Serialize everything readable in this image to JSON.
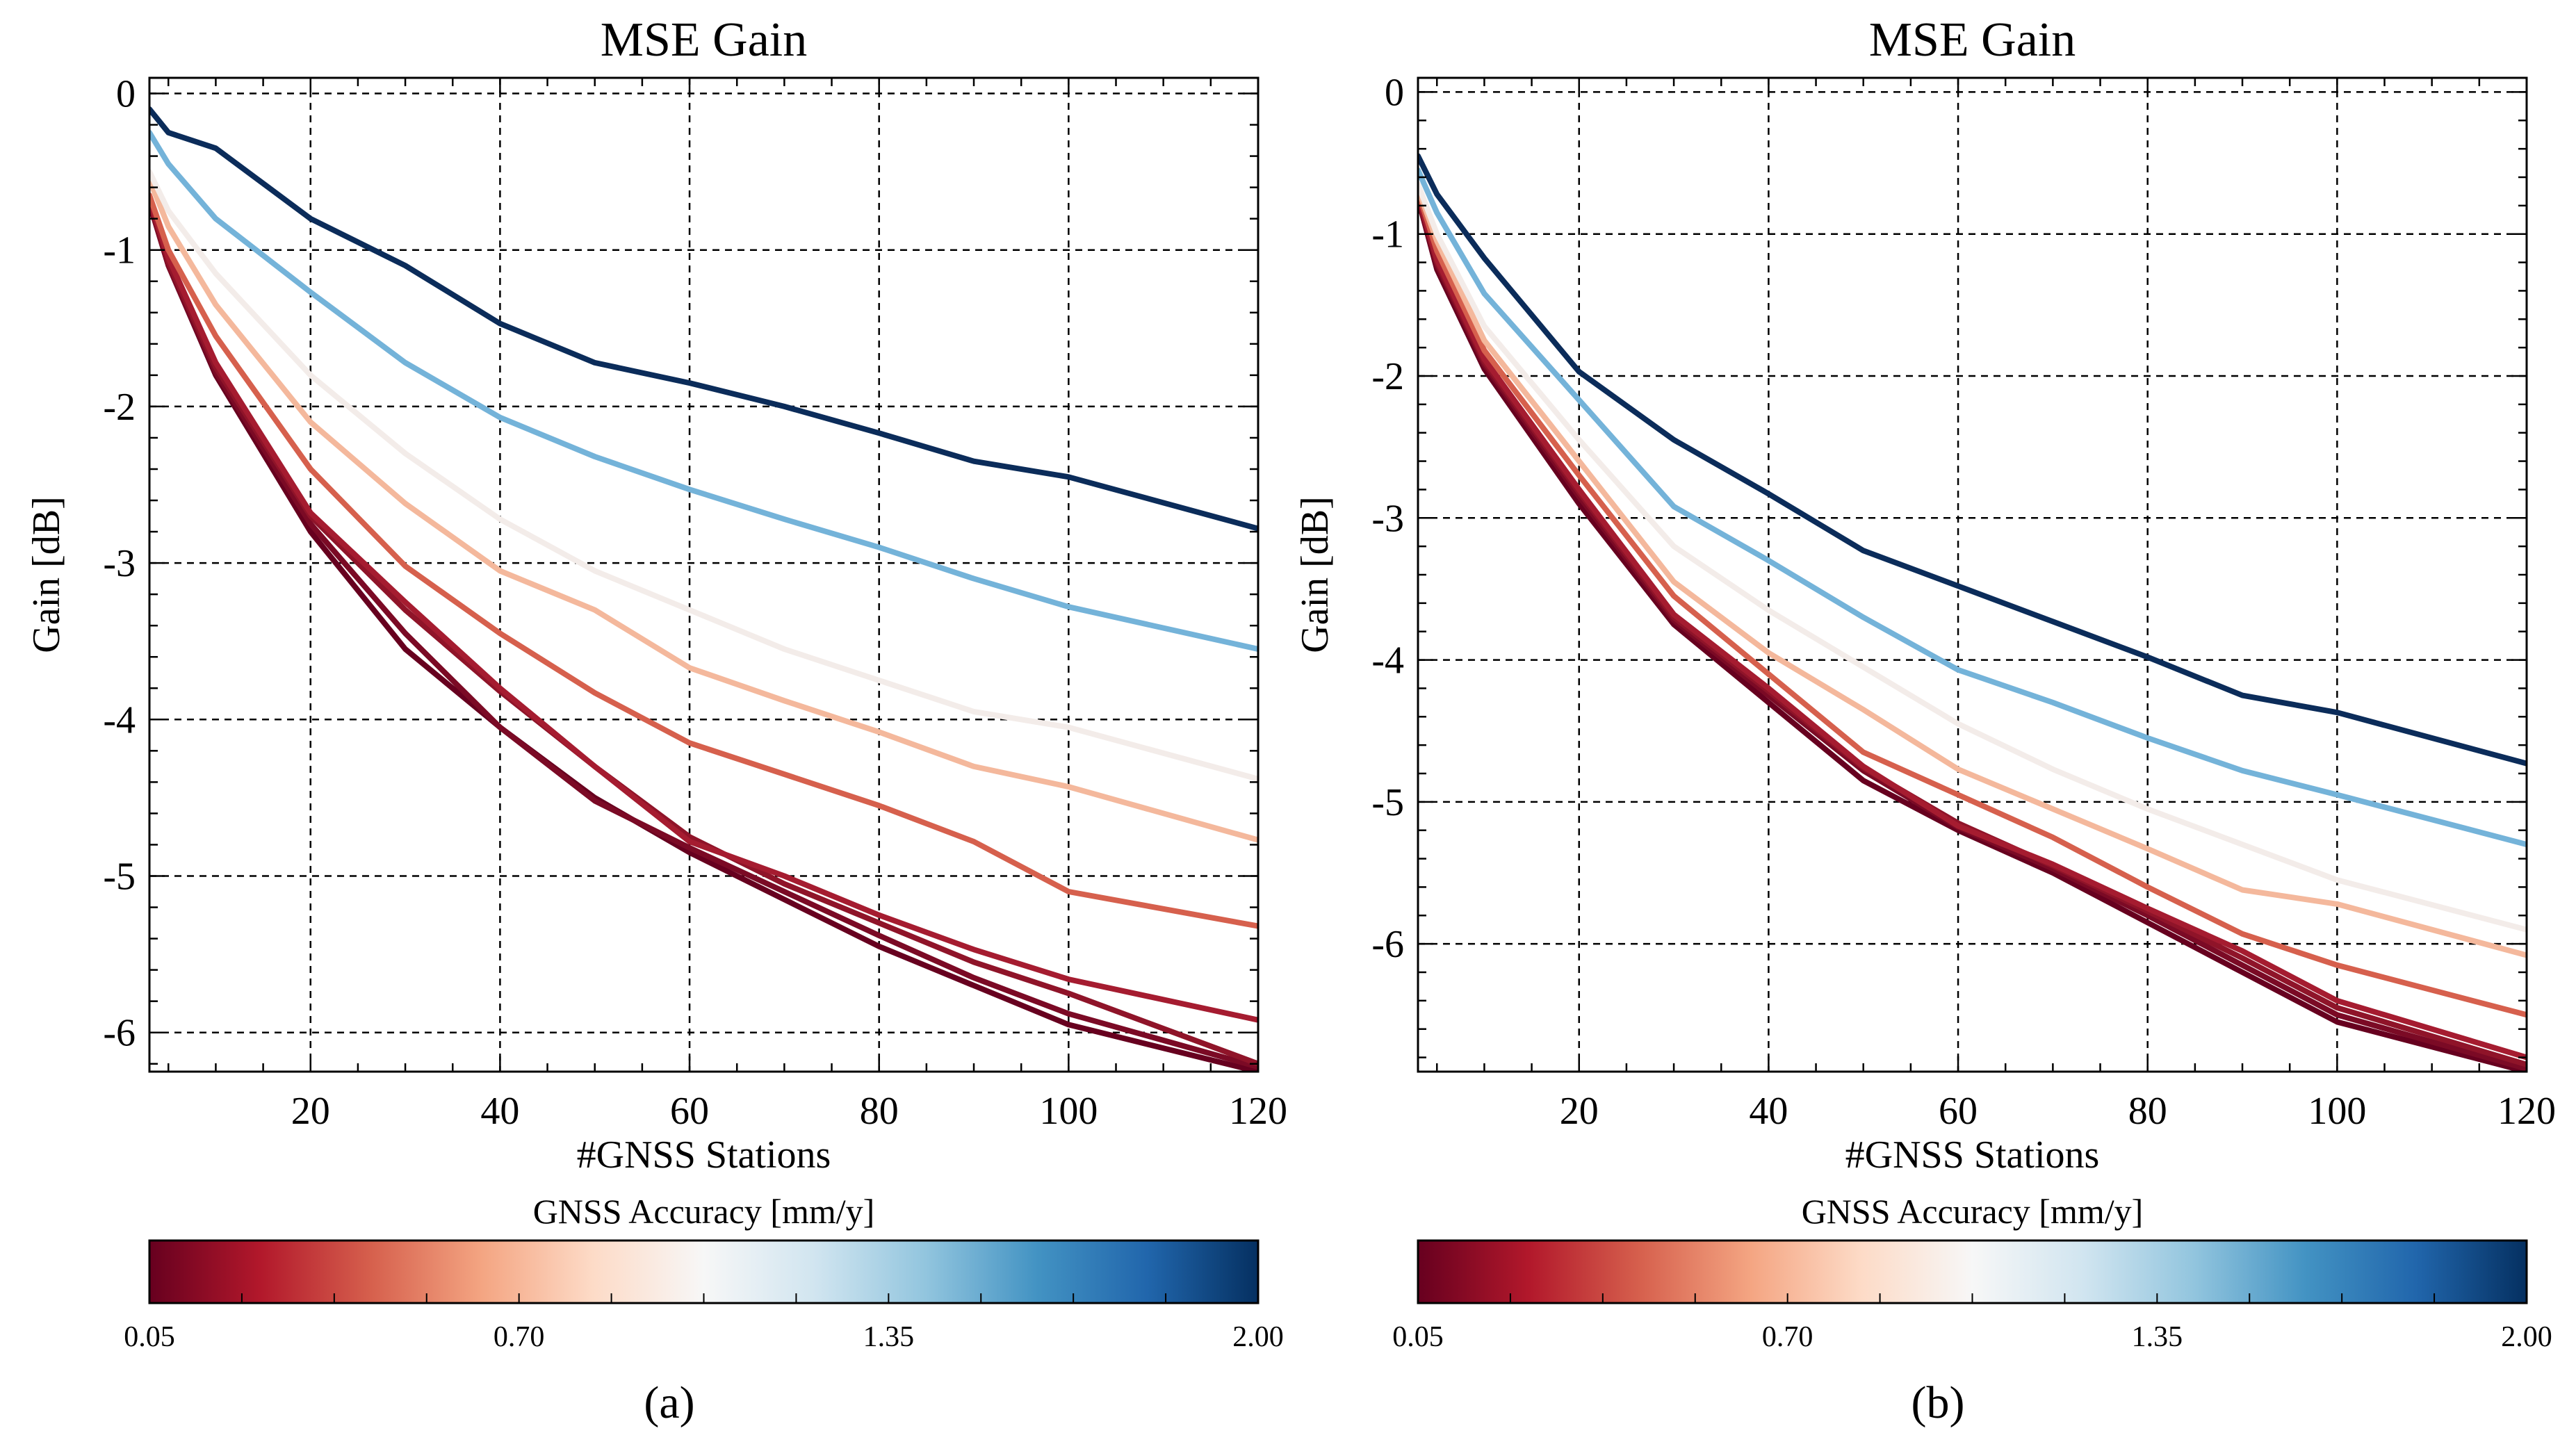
{
  "colorbar": {
    "title": "GNSS Accuracy  [mm/y]",
    "ticks": [
      "0.05",
      "0.70",
      "1.35",
      "2.00"
    ],
    "stops": [
      "#67001f",
      "#b2182b",
      "#d6604d",
      "#f4a582",
      "#fddbc7",
      "#f7f7f7",
      "#d1e5f0",
      "#92c5de",
      "#4393c3",
      "#2166ac",
      "#053061"
    ]
  },
  "chart_data": [
    {
      "type": "line",
      "caption": "(a)",
      "title": "MSE Gain",
      "xlabel": "#GNSS Stations",
      "ylabel": "Gain [dB]",
      "xlim": [
        3,
        120
      ],
      "ylim": [
        -6.25,
        0.1
      ],
      "xticks": [
        20,
        40,
        60,
        80,
        100,
        120
      ],
      "yticks": [
        0,
        -1,
        -2,
        -3,
        -4,
        -5,
        -6
      ],
      "ytick_labels": [
        "0",
        "-1",
        "-2",
        "-3",
        "-4",
        "-5",
        "-6"
      ],
      "xtick_labels": [
        "20",
        "40",
        "60",
        "80",
        "100",
        "120"
      ],
      "x": [
        3,
        5,
        10,
        20,
        30,
        40,
        50,
        60,
        70,
        80,
        90,
        100,
        120
      ],
      "series": [
        {
          "name": "0.05",
          "color": "#67001f",
          "values": [
            -0.7,
            -1.1,
            -1.8,
            -2.8,
            -3.55,
            -4.05,
            -4.5,
            -4.85,
            -5.15,
            -5.45,
            -5.7,
            -5.95,
            -6.25
          ]
        },
        {
          "name": "0.10",
          "color": "#7b0a25",
          "values": [
            -0.7,
            -1.1,
            -1.78,
            -2.75,
            -3.45,
            -4.05,
            -4.52,
            -4.82,
            -5.1,
            -5.38,
            -5.65,
            -5.88,
            -6.22
          ]
        },
        {
          "name": "0.15",
          "color": "#8f1429",
          "values": [
            -0.68,
            -1.08,
            -1.75,
            -2.7,
            -3.3,
            -3.82,
            -4.3,
            -4.75,
            -5.05,
            -5.3,
            -5.55,
            -5.75,
            -6.2
          ]
        },
        {
          "name": "0.25",
          "color": "#a51c30",
          "values": [
            -0.67,
            -1.05,
            -1.72,
            -2.68,
            -3.25,
            -3.8,
            -4.3,
            -4.78,
            -5.0,
            -5.25,
            -5.47,
            -5.66,
            -5.92
          ]
        },
        {
          "name": "0.45",
          "color": "#d6604d",
          "values": [
            -0.65,
            -1.0,
            -1.55,
            -2.4,
            -3.02,
            -3.45,
            -3.83,
            -4.15,
            -4.35,
            -4.55,
            -4.78,
            -5.1,
            -5.32
          ]
        },
        {
          "name": "0.70",
          "color": "#f4b89c",
          "values": [
            -0.55,
            -0.85,
            -1.35,
            -2.1,
            -2.62,
            -3.05,
            -3.3,
            -3.67,
            -3.88,
            -4.08,
            -4.3,
            -4.43,
            -4.77
          ]
        },
        {
          "name": "1.00",
          "color": "#f3ece9",
          "values": [
            -0.5,
            -0.75,
            -1.15,
            -1.8,
            -2.3,
            -2.72,
            -3.05,
            -3.3,
            -3.55,
            -3.75,
            -3.95,
            -4.05,
            -4.38
          ]
        },
        {
          "name": "1.35",
          "color": "#74b3d9",
          "values": [
            -0.25,
            -0.45,
            -0.8,
            -1.27,
            -1.72,
            -2.07,
            -2.32,
            -2.53,
            -2.72,
            -2.9,
            -3.1,
            -3.28,
            -3.55
          ]
        },
        {
          "name": "2.00",
          "color": "#0b2c5a",
          "values": [
            -0.1,
            -0.25,
            -0.35,
            -0.8,
            -1.1,
            -1.47,
            -1.72,
            -1.85,
            -2.0,
            -2.17,
            -2.35,
            -2.45,
            -2.78
          ]
        }
      ]
    },
    {
      "type": "line",
      "caption": "(b)",
      "title": "MSE Gain",
      "xlabel": "#GNSS Stations",
      "ylabel": "Gain [dB]",
      "xlim": [
        3,
        120
      ],
      "ylim": [
        -6.9,
        0.1
      ],
      "xticks": [
        20,
        40,
        60,
        80,
        100,
        120
      ],
      "yticks": [
        0,
        -1,
        -2,
        -3,
        -4,
        -5,
        -6
      ],
      "ytick_labels": [
        "0",
        "-1",
        "-2",
        "-3",
        "-4",
        "-5",
        "-6"
      ],
      "xtick_labels": [
        "20",
        "40",
        "60",
        "80",
        "100",
        "120"
      ],
      "x": [
        3,
        5,
        10,
        20,
        30,
        40,
        50,
        60,
        70,
        80,
        90,
        100,
        120
      ],
      "series": [
        {
          "name": "0.05",
          "color": "#67001f",
          "values": [
            -0.75,
            -1.25,
            -1.95,
            -2.9,
            -3.75,
            -4.3,
            -4.85,
            -5.2,
            -5.5,
            -5.85,
            -6.2,
            -6.55,
            -6.9
          ]
        },
        {
          "name": "0.10",
          "color": "#7b0a25",
          "values": [
            -0.75,
            -1.22,
            -1.92,
            -2.85,
            -3.72,
            -4.25,
            -4.78,
            -5.18,
            -5.47,
            -5.8,
            -6.15,
            -6.5,
            -6.88
          ]
        },
        {
          "name": "0.15",
          "color": "#8f1429",
          "values": [
            -0.73,
            -1.2,
            -1.9,
            -2.82,
            -3.7,
            -4.22,
            -4.76,
            -5.15,
            -5.45,
            -5.77,
            -6.1,
            -6.45,
            -6.85
          ]
        },
        {
          "name": "0.25",
          "color": "#a51c30",
          "values": [
            -0.72,
            -1.18,
            -1.88,
            -2.8,
            -3.68,
            -4.2,
            -4.75,
            -5.17,
            -5.44,
            -5.75,
            -6.05,
            -6.4,
            -6.8
          ]
        },
        {
          "name": "0.45",
          "color": "#d6604d",
          "values": [
            -0.7,
            -1.12,
            -1.82,
            -2.7,
            -3.55,
            -4.1,
            -4.65,
            -4.95,
            -5.25,
            -5.6,
            -5.93,
            -6.15,
            -6.5
          ]
        },
        {
          "name": "0.70",
          "color": "#f4b89c",
          "values": [
            -0.68,
            -1.05,
            -1.75,
            -2.6,
            -3.45,
            -3.95,
            -4.35,
            -4.77,
            -5.05,
            -5.33,
            -5.62,
            -5.72,
            -6.08
          ]
        },
        {
          "name": "1.00",
          "color": "#f3ece9",
          "values": [
            -0.65,
            -1.0,
            -1.65,
            -2.45,
            -3.2,
            -3.65,
            -4.05,
            -4.45,
            -4.77,
            -5.05,
            -5.3,
            -5.55,
            -5.9
          ]
        },
        {
          "name": "1.35",
          "color": "#74b3d9",
          "values": [
            -0.55,
            -0.85,
            -1.42,
            -2.17,
            -2.92,
            -3.3,
            -3.7,
            -4.07,
            -4.3,
            -4.55,
            -4.78,
            -4.95,
            -5.3
          ]
        },
        {
          "name": "2.00",
          "color": "#0b2c5a",
          "values": [
            -0.45,
            -0.72,
            -1.17,
            -1.97,
            -2.45,
            -2.83,
            -3.23,
            -3.48,
            -3.73,
            -3.98,
            -4.25,
            -4.37,
            -4.73
          ]
        }
      ]
    }
  ]
}
